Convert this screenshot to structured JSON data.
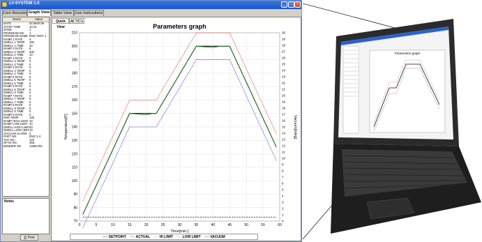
{
  "window": {
    "title": "LV-SYSTEM 1.0",
    "tabs": [
      "Core Records",
      "Graph View",
      "Table View",
      "Use Instructions"
    ],
    "active_tab": 1
  },
  "left_panel": {
    "col_name": "Name",
    "col_value": "Value",
    "rows": [
      [
        "DATE",
        "02 MAR 08"
      ],
      [
        "START TIME",
        "10:14"
      ],
      [
        "ZONE",
        "1"
      ],
      [
        "PROGRAM NO.",
        "1"
      ],
      [
        "PROGRAM NAME",
        "ENG TEST 1"
      ],
      [
        "RAMP 1 RATE",
        "5"
      ],
      [
        "DWELL 1 TEMP",
        "150"
      ],
      [
        "DWELL 1 TIME",
        "10"
      ],
      [
        "RAMP 2 RATE",
        "5"
      ],
      [
        "DWELL 2 TEMP",
        "200"
      ],
      [
        "DWELL 2 TIME",
        "10"
      ],
      [
        "RAMP 3 RATE",
        "0"
      ],
      [
        "DWELL 3 TEMP",
        "0"
      ],
      [
        "DWELL 3 TIME",
        "0"
      ],
      [
        "RAMP 4 RATE",
        "0"
      ],
      [
        "DWELL 4 TEMP",
        "0"
      ],
      [
        "DWELL 4 TIME",
        "0"
      ],
      [
        "RAMP 5 RATE",
        "0"
      ],
      [
        "DWELL 5 TEMP",
        "0"
      ],
      [
        "DWELL 5 TIME",
        "0"
      ],
      [
        "RAMP 6 RATE",
        "0"
      ],
      [
        "DWELL 6 TEMP",
        "0"
      ],
      [
        "DWELL 6 TIME",
        "0"
      ],
      [
        "RAMP 7 RATE",
        "0"
      ],
      [
        "DWELL 7 TEMP",
        "0"
      ],
      [
        "DWELL 7 TIME",
        "0"
      ],
      [
        "RAMP 8 RATE",
        "0"
      ],
      [
        "DWELL 8 TEMP",
        "0"
      ],
      [
        "DWELL 8 TIME",
        "0"
      ],
      [
        "RAMP 9 RATE",
        "0"
      ],
      [
        "END TEMP",
        "125"
      ],
      [
        "RAMP HIGH LIMIT",
        "10"
      ],
      [
        "RAMP LOW LIMIT",
        "10"
      ],
      [
        "DWELL HIGH LIMIT",
        "10"
      ],
      [
        "DWELL LOW LIMIT",
        "10"
      ],
      [
        "VACUUM ALARM",
        "0"
      ],
      [
        "PART NO.",
        "ENG 2-2"
      ],
      [
        "TAG NO.",
        "123"
      ],
      [
        "OP ID NO.",
        "JWL"
      ],
      [
        "BONDER SN",
        "14081783"
      ]
    ]
  },
  "notes": {
    "label": "Notes"
  },
  "print_button": "Print",
  "graph": {
    "subtabs": [
      "Quick View",
      "All T/C's"
    ],
    "active_subtab": 0
  },
  "chart_data": {
    "type": "line",
    "title": "Parameters graph",
    "xlabel": "Time[min.]",
    "ylabel": "Temperature[F]",
    "y2label": "Vacuum[inHg]",
    "xlim": [
      0,
      60
    ],
    "ylim": [
      70,
      210
    ],
    "y2lim": [
      0,
      30
    ],
    "xticks": [
      0,
      5,
      10,
      15,
      20,
      25,
      30,
      35,
      40,
      45,
      50,
      55,
      60
    ],
    "yticks": [
      70,
      80,
      90,
      100,
      110,
      120,
      130,
      140,
      150,
      160,
      170,
      180,
      190,
      200,
      210
    ],
    "y2ticks": [
      0,
      1,
      2,
      3,
      4,
      5,
      6,
      7,
      8,
      9,
      10,
      11,
      12,
      13,
      14,
      15,
      16,
      17,
      18,
      19,
      20,
      21,
      22,
      23,
      24,
      25,
      26,
      27,
      28,
      29,
      30
    ],
    "legend": [
      "SETPOINT",
      "ACTUAL",
      "HI LIMIT",
      "LOW LIMIT",
      "VACUUM"
    ],
    "series": [
      {
        "name": "SETPOINT",
        "color": "#000000",
        "x": [
          1,
          15,
          23,
          35,
          45,
          59
        ],
        "y": [
          75,
          150,
          150,
          200,
          200,
          125
        ]
      },
      {
        "name": "ACTUAL",
        "color": "#2a8a2a",
        "x": [
          1,
          15,
          20,
          22,
          23,
          35,
          40,
          42,
          45,
          59
        ],
        "y": [
          75,
          150,
          149,
          150,
          150,
          200,
          199,
          200,
          200,
          125
        ]
      },
      {
        "name": "HI LIMIT",
        "color": "#e02020",
        "x": [
          1,
          15,
          23,
          35,
          45,
          59
        ],
        "y": [
          85,
          160,
          160,
          210,
          210,
          135
        ]
      },
      {
        "name": "LOW LIMIT",
        "color": "#2020d0",
        "x": [
          1,
          15,
          23,
          35,
          45,
          59
        ],
        "y": [
          65,
          140,
          140,
          190,
          190,
          115
        ]
      },
      {
        "name": "VACUUM",
        "color": "#000000",
        "x": [
          1,
          59
        ],
        "y": [
          73,
          73
        ]
      }
    ]
  },
  "laptop_screen": {
    "title": "Parameters graph"
  },
  "colors": {
    "titlebar": "#1b53c8",
    "panel": "#d4d0c8"
  }
}
